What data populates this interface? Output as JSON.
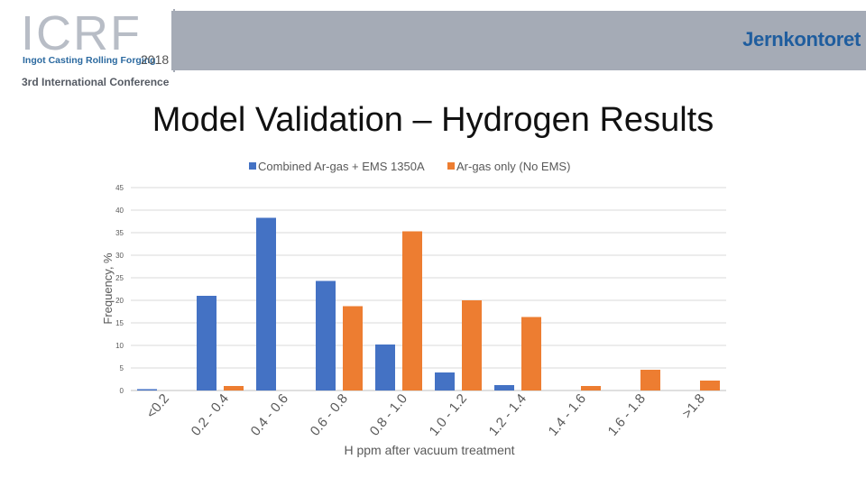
{
  "header": {
    "logo_letters": "ICRF",
    "logo_subtitle": "Ingot Casting Rolling Forging",
    "logo_year": "2018",
    "conference": "3rd International Conference",
    "brand": "Jernkontoret"
  },
  "title": "Model Validation – Hydrogen Results",
  "colors": {
    "series1": "#4472c4",
    "series2": "#ed7d31",
    "header_band": "#a5abb6"
  },
  "chart_data": {
    "type": "bar",
    "xlabel": "H ppm after vacuum treatment",
    "ylabel": "Frequency, %",
    "ylim": [
      0,
      45
    ],
    "yticks": [
      "0",
      "5",
      "10",
      "15",
      "20",
      "25",
      "30",
      "35",
      "40",
      "45"
    ],
    "grid": true,
    "legend_position": "top",
    "categories": [
      "<0.2",
      "0.2 - 0.4",
      "0.4 - 0.6",
      "0.6 - 0.8",
      "0.8 - 1.0",
      "1.0 - 1.2",
      "1.2 - 1.4",
      "1.4 - 1.6",
      "1.6 - 1.8",
      ">1.8"
    ],
    "series": [
      {
        "name": "Combined Ar-gas + EMS 1350A",
        "values": [
          0.3,
          21,
          38.3,
          24.3,
          10.2,
          4,
          1.2,
          0,
          0,
          0
        ]
      },
      {
        "name": "Ar-gas only (No EMS)",
        "values": [
          0,
          1,
          0,
          18.7,
          35.3,
          20,
          16.3,
          1,
          4.6,
          2.2
        ]
      }
    ]
  }
}
